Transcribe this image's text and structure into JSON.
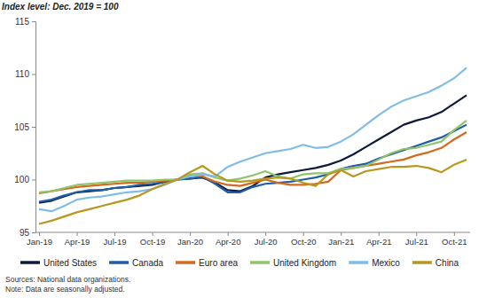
{
  "chart_data": {
    "type": "line",
    "ylabel": "Index level: Dec. 2019 = 100",
    "annotations": [
      "Sources: National data organizations.",
      "Note: Data are seasonally adjusted."
    ],
    "categories": [
      "Jan-19",
      null,
      null,
      "Apr-19",
      null,
      null,
      "Jul-19",
      null,
      null,
      "Oct-19",
      null,
      null,
      "Jan-20",
      null,
      null,
      "Apr-20",
      null,
      null,
      "Jul-20",
      null,
      null,
      "Oct-20",
      null,
      null,
      "Jan-21",
      null,
      null,
      "Apr-21",
      null,
      null,
      "Jul-21",
      null,
      null,
      "Oct-21",
      null
    ],
    "ylim": [
      95,
      115
    ],
    "yticks": [
      95,
      100,
      105,
      110,
      115
    ],
    "grid": false,
    "legend": "bottom",
    "series": [
      {
        "name": "United States",
        "color": "#0e1a3c",
        "values": [
          97.8,
          98.0,
          98.4,
          98.8,
          98.9,
          99.0,
          99.2,
          99.3,
          99.4,
          99.5,
          99.8,
          100,
          100.1,
          100.2,
          99.7,
          99.0,
          98.9,
          99.4,
          100.2,
          100.5,
          100.7,
          100.9,
          101.1,
          101.4,
          101.8,
          102.4,
          103.1,
          103.8,
          104.5,
          105.2,
          105.6,
          105.9,
          106.4,
          107.2,
          108.0
        ]
      },
      {
        "name": "Canada",
        "color": "#1f5fa8",
        "values": [
          97.9,
          98.1,
          98.5,
          98.8,
          99.0,
          99.0,
          99.2,
          99.3,
          99.5,
          99.6,
          99.8,
          100,
          100.1,
          100.3,
          99.6,
          98.8,
          98.8,
          99.3,
          99.6,
          99.7,
          99.8,
          100.0,
          100.2,
          100.5,
          101.0,
          101.3,
          101.5,
          102.0,
          102.4,
          102.8,
          103.2,
          103.6,
          104.0,
          104.6,
          105.2
        ]
      },
      {
        "name": "Euro area",
        "color": "#d2691e",
        "values": [
          98.7,
          98.9,
          99.1,
          99.3,
          99.4,
          99.5,
          99.6,
          99.7,
          99.7,
          99.8,
          99.9,
          100,
          100.4,
          100.3,
          99.8,
          99.5,
          99.4,
          99.7,
          100.0,
          99.7,
          99.5,
          99.5,
          99.6,
          99.8,
          100.9,
          101.1,
          101.3,
          101.5,
          101.7,
          101.9,
          102.3,
          102.6,
          103.0,
          103.8,
          104.5
        ]
      },
      {
        "name": "United Kingdom",
        "color": "#8fc46a",
        "values": [
          98.8,
          98.9,
          99.2,
          99.5,
          99.6,
          99.7,
          99.8,
          99.9,
          99.9,
          99.9,
          100.0,
          100,
          100.5,
          100.6,
          100.2,
          99.9,
          100.1,
          100.4,
          100.8,
          100.3,
          100.1,
          100.5,
          100.6,
          100.6,
          101.0,
          101.1,
          101.3,
          101.9,
          102.5,
          102.9,
          103.0,
          103.3,
          103.6,
          104.7,
          105.6
        ]
      },
      {
        "name": "Mexico",
        "color": "#7fbde8",
        "values": [
          97.2,
          97.0,
          97.5,
          98.1,
          98.3,
          98.4,
          98.6,
          98.8,
          98.9,
          99.1,
          99.5,
          100,
          100.3,
          100.5,
          100.3,
          101.2,
          101.7,
          102.1,
          102.5,
          102.7,
          102.9,
          103.3,
          103.0,
          103.1,
          103.6,
          104.3,
          105.2,
          106.1,
          106.9,
          107.5,
          107.9,
          108.3,
          108.9,
          109.6,
          110.6
        ]
      },
      {
        "name": "China",
        "color": "#b8971f",
        "values": [
          95.8,
          96.1,
          96.5,
          96.9,
          97.2,
          97.5,
          97.8,
          98.1,
          98.5,
          99.1,
          99.6,
          100,
          100.7,
          101.3,
          100.5,
          99.9,
          99.8,
          99.9,
          100.1,
          100.2,
          100.1,
          99.7,
          99.4,
          100.5,
          100.9,
          100.3,
          100.8,
          101.0,
          101.2,
          101.2,
          101.3,
          101.1,
          100.7,
          101.4,
          101.9
        ]
      }
    ]
  }
}
